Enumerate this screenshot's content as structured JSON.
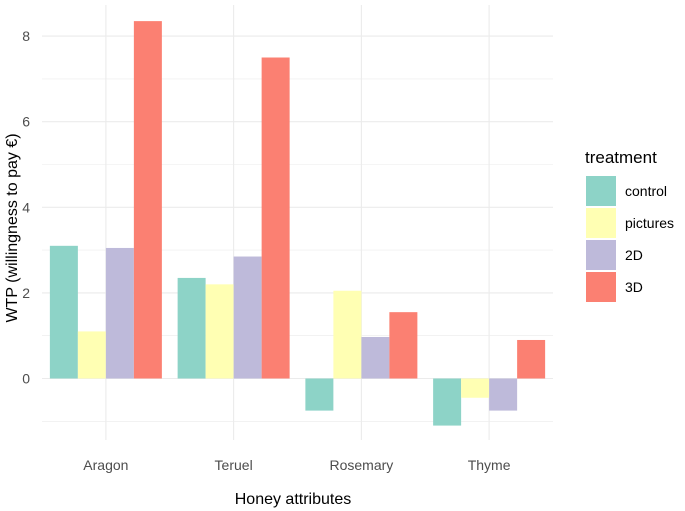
{
  "chart_data": {
    "type": "bar",
    "title": "",
    "xlabel": "Honey attributes",
    "ylabel": "WTP (willingness to pay €)",
    "categories": [
      "Aragon",
      "Teruel",
      "Rosemary",
      "Thyme"
    ],
    "series": [
      {
        "name": "control",
        "color": "#8DD3C7",
        "values": [
          3.1,
          2.35,
          -0.75,
          -1.1
        ]
      },
      {
        "name": "pictures",
        "color": "#FFFFB3",
        "values": [
          1.1,
          2.2,
          2.05,
          -0.45
        ]
      },
      {
        "name": "2D",
        "color": "#BEBADA",
        "values": [
          3.05,
          2.85,
          0.97,
          -0.75
        ]
      },
      {
        "name": "3D",
        "color": "#FB8072",
        "values": [
          8.35,
          7.5,
          1.55,
          0.9
        ]
      }
    ],
    "ylim": [
      -1.2,
      8.4
    ],
    "yticks": [
      0,
      2,
      4,
      6,
      8
    ],
    "grid": true,
    "legend": {
      "title": "treatment",
      "position": "right"
    }
  }
}
